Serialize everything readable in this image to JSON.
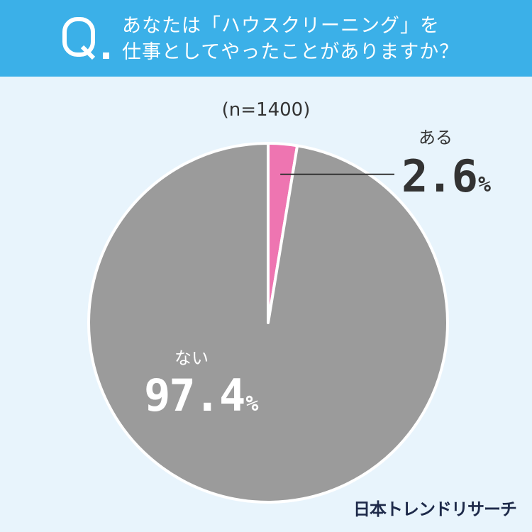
{
  "header": {
    "q_mark": "Q",
    "title_line1": "あなたは「ハウスクリーニング」を",
    "title_line2": "仕事としてやったことがありますか？"
  },
  "sample_label": "(n=1400)",
  "brand": "日本トレンドリサーチ",
  "colors": {
    "header_bg": "#3bb0e8",
    "background": "#e8f4fc",
    "slice_yes": "#ee75b1",
    "slice_no": "#9b9b9b"
  },
  "chart_data": {
    "type": "pie",
    "title": "",
    "series": [
      {
        "name": "ある",
        "value": 2.6,
        "label": "2.6",
        "unit": "%",
        "color": "#ee75b1"
      },
      {
        "name": "ない",
        "value": 97.4,
        "label": "97.4",
        "unit": "%",
        "color": "#9b9b9b"
      }
    ]
  }
}
